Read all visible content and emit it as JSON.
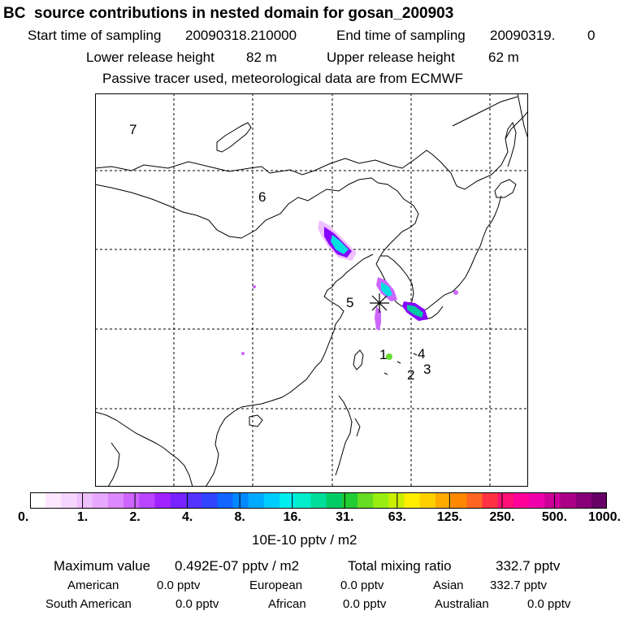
{
  "header": {
    "title": "BC  source contributions in nested domain for gosan_200903",
    "start_label": "Start time of sampling",
    "start_value": "20090318.210000",
    "end_label": "End time of sampling",
    "end_value": "20090319.",
    "end_extra": "0",
    "lower_label": "Lower release height",
    "lower_value": "82 m",
    "upper_label": "Upper release height",
    "upper_value": "62 m",
    "note": "Passive tracer used, meteorological data are from ECMWF"
  },
  "map": {
    "region_labels": [
      "7",
      "6",
      "5",
      "1",
      "2",
      "3",
      "4"
    ],
    "receptor_marker": "star-marker",
    "plume_colors": {
      "outer": "#cc66ff",
      "mid": "#8800ff",
      "inner": "#00e0e0",
      "core": "#00c8a0",
      "green": "#66dd33"
    }
  },
  "colorbar": {
    "colors": [
      "#ffffff",
      "#fbe8ff",
      "#f5d5ff",
      "#efc0ff",
      "#e8a8ff",
      "#dc88ff",
      "#cc66ff",
      "#b944ff",
      "#a022ff",
      "#7722ff",
      "#5533ff",
      "#3344ff",
      "#1166ff",
      "#0088ff",
      "#00aaff",
      "#00ccff",
      "#00eeee",
      "#00eecc",
      "#00dd99",
      "#00cc66",
      "#22cc33",
      "#66dd22",
      "#99ee11",
      "#ccee00",
      "#ffee00",
      "#ffd000",
      "#ffaa00",
      "#ff8800",
      "#ff6622",
      "#ff3344",
      "#ff1177",
      "#ff0099",
      "#ee00aa",
      "#cc0099",
      "#aa0088",
      "#880077",
      "#660066"
    ],
    "tick_labels": [
      "0.",
      "1.",
      "2.",
      "4.",
      "8.",
      "16.",
      "31.",
      "63.",
      "125.",
      "250.",
      "500.",
      "1000."
    ],
    "unit_label": "10E-10 pptv / m2"
  },
  "stats": {
    "max_label": "Maximum value",
    "max_value": "0.492E-07 pptv / m2",
    "total_label": "Total mixing ratio",
    "total_value": "332.7 pptv",
    "american_label": "American",
    "american_value": "0.0 pptv",
    "european_label": "European",
    "european_value": "0.0 pptv",
    "asian_label": "Asian",
    "asian_value": "332.7 pptv",
    "south_american_label": "South American",
    "south_american_value": "0.0 pptv",
    "african_label": "African",
    "african_value": "0.0 pptv",
    "australian_label": "Australian",
    "australian_value": "0.0 pptv"
  }
}
